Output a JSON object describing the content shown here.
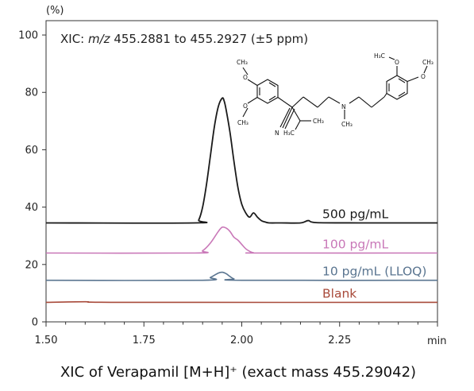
{
  "chart_data": {
    "type": "line",
    "y_unit": "(%)",
    "x_unit": "min",
    "xlim": [
      1.5,
      2.5
    ],
    "ylim": [
      0,
      105
    ],
    "x_ticks": [
      1.5,
      1.75,
      2.0,
      2.25
    ],
    "x_tick_labels": [
      "1.50",
      "1.75",
      "2.00",
      "2.25"
    ],
    "y_ticks": [
      0,
      20,
      40,
      60,
      80,
      100
    ],
    "y_tick_labels": [
      "0",
      "20",
      "40",
      "60",
      "80",
      "100"
    ],
    "grid": false,
    "annotation": {
      "prefix": "XIC: ",
      "mz": "m/z",
      "suffix": " 455.2881 to 455.2927 (±5 ppm)"
    },
    "caption": "XIC of Verapamil [M+H]⁺ (exact mass 455.29042)",
    "structure_labels": [
      "CH₃",
      "O",
      "O",
      "CH₃",
      "H₃C",
      "O",
      "CH₃",
      "O",
      "N",
      "CH₃",
      "CH₃",
      "H₃C",
      "N"
    ],
    "series": [
      {
        "name": "500 pg/mL",
        "color": "#1a1a1a",
        "x": [
          1.5,
          1.88,
          1.89,
          1.9,
          1.91,
          1.92,
          1.93,
          1.94,
          1.95,
          1.955,
          1.96,
          1.97,
          1.98,
          1.99,
          2.0,
          2.01,
          2.02,
          2.03,
          2.04,
          2.05,
          2.06,
          2.07,
          2.1,
          2.15,
          2.17,
          2.19,
          2.3,
          2.4,
          2.5
        ],
        "y": [
          34.5,
          34.5,
          35.5,
          40,
          48,
          58,
          68,
          75,
          78,
          77,
          74,
          66,
          56,
          47,
          41,
          38,
          36.5,
          38,
          36.5,
          35.3,
          34.8,
          34.5,
          34.5,
          34.5,
          35.3,
          34.6,
          34.5,
          34.5,
          34.5
        ]
      },
      {
        "name": "100 pg/mL",
        "color": "#c978b8",
        "x": [
          1.5,
          1.88,
          1.9,
          1.92,
          1.94,
          1.95,
          1.96,
          1.97,
          1.98,
          1.99,
          2.0,
          2.01,
          2.02,
          2.03,
          2.05,
          2.5
        ],
        "y": [
          24,
          24,
          24.8,
          27.5,
          31.5,
          33,
          32.7,
          31.5,
          29.5,
          28.5,
          27,
          25.5,
          24.6,
          24.1,
          24,
          24
        ]
      },
      {
        "name": "10 pg/mL (LLOQ)",
        "color": "#5a7590",
        "x": [
          1.5,
          1.9,
          1.92,
          1.94,
          1.95,
          1.96,
          1.97,
          1.98,
          2.0,
          2.5
        ],
        "y": [
          14.5,
          14.5,
          15.5,
          17,
          17.3,
          16.8,
          15.8,
          15,
          14.5,
          14.5
        ]
      },
      {
        "name": "Blank",
        "color": "#a84a3a",
        "x": [
          1.5,
          1.6,
          1.7,
          2.5
        ],
        "y": [
          6.8,
          7.0,
          6.8,
          6.8
        ]
      }
    ]
  }
}
